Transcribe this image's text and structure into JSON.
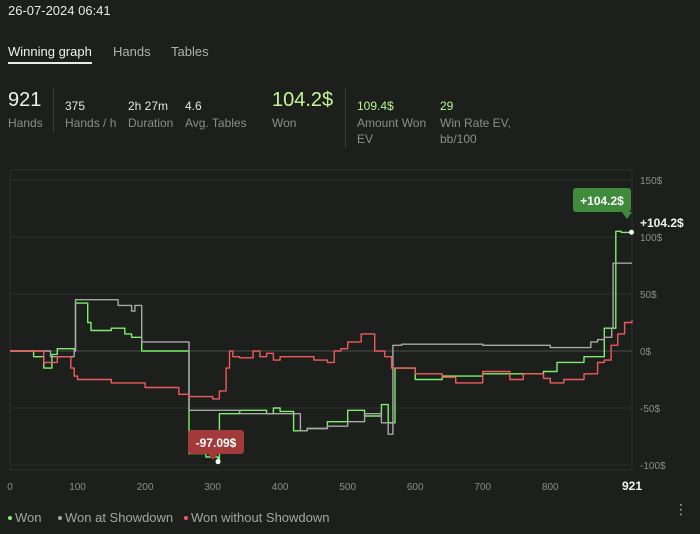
{
  "header": {
    "datetime": "26-07-2024 06:41"
  },
  "tabs": [
    {
      "label": "Winning graph",
      "active": true
    },
    {
      "label": "Hands",
      "active": false
    },
    {
      "label": "Tables",
      "active": false
    }
  ],
  "stats": {
    "hands": {
      "value": "921",
      "label": "Hands"
    },
    "hands_per_hour": {
      "value": "375",
      "label": "Hands / h"
    },
    "duration": {
      "value": "2h 27m",
      "label": "Duration"
    },
    "avg_tables": {
      "value": "4.6",
      "label": "Avg. Tables"
    },
    "won": {
      "value": "104.2$",
      "label": "Won"
    },
    "amount_won_ev": {
      "value": "109.4$",
      "label_line1": "Amount Won",
      "label_line2": "EV"
    },
    "win_rate_ev": {
      "value": "29",
      "label_line1": "Win Rate EV,",
      "label_line2": "bb/100"
    }
  },
  "legend": {
    "won": "Won",
    "won_at_showdown": "Won at Showdown",
    "won_without_showdown": "Won without Showdown"
  },
  "colors": {
    "won": "#7cf06a",
    "won_at_showdown": "#a8a8a8",
    "won_without_showdown": "#ef5b5b",
    "max_badge": "#3f8a3b",
    "min_badge": "#a33a3a"
  },
  "chart_data": {
    "type": "line",
    "x_ticks": [
      "0",
      "100",
      "200",
      "300",
      "400",
      "500",
      "600",
      "700",
      "800",
      "921"
    ],
    "y_ticks": [
      "150$",
      "100$",
      "50$",
      "0$",
      "-50$",
      "-100$"
    ],
    "xlim": [
      0,
      921
    ],
    "ylim": [
      -100,
      150
    ],
    "max_label": "+104.2$",
    "min_label": "-97.09$",
    "end_label": "+104.2$",
    "max_point": {
      "x": 921,
      "y": 104.2
    },
    "min_point": {
      "x": 308,
      "y": -97.09
    },
    "series": [
      {
        "name": "Won",
        "points": [
          [
            0,
            0
          ],
          [
            25,
            0
          ],
          [
            35,
            -5
          ],
          [
            50,
            -15
          ],
          [
            62,
            -3
          ],
          [
            70,
            2
          ],
          [
            95,
            0
          ],
          [
            97,
            42
          ],
          [
            115,
            25
          ],
          [
            120,
            18
          ],
          [
            150,
            20
          ],
          [
            170,
            15
          ],
          [
            180,
            12
          ],
          [
            195,
            0
          ],
          [
            265,
            -90
          ],
          [
            290,
            -93
          ],
          [
            308,
            -97.09
          ],
          [
            310,
            -55
          ],
          [
            340,
            -52
          ],
          [
            380,
            -55
          ],
          [
            390,
            -50
          ],
          [
            400,
            -53
          ],
          [
            420,
            -70
          ],
          [
            440,
            -68
          ],
          [
            470,
            -62
          ],
          [
            500,
            -52
          ],
          [
            525,
            -57
          ],
          [
            550,
            -47
          ],
          [
            560,
            -63
          ],
          [
            570,
            -15
          ],
          [
            600,
            -25
          ],
          [
            625,
            -25
          ],
          [
            640,
            -22
          ],
          [
            700,
            -20
          ],
          [
            760,
            -20
          ],
          [
            790,
            -18
          ],
          [
            810,
            -10
          ],
          [
            850,
            -5
          ],
          [
            880,
            20
          ],
          [
            893,
            20
          ],
          [
            897,
            105
          ],
          [
            905,
            104
          ],
          [
            921,
            104.2
          ]
        ]
      },
      {
        "name": "Won at Showdown",
        "points": [
          [
            0,
            0
          ],
          [
            40,
            0
          ],
          [
            60,
            -5
          ],
          [
            95,
            0
          ],
          [
            97,
            45
          ],
          [
            150,
            45
          ],
          [
            160,
            40
          ],
          [
            180,
            35
          ],
          [
            185,
            40
          ],
          [
            195,
            8
          ],
          [
            265,
            -52
          ],
          [
            340,
            -55
          ],
          [
            380,
            -55
          ],
          [
            400,
            -55
          ],
          [
            430,
            -70
          ],
          [
            440,
            -68
          ],
          [
            470,
            -66
          ],
          [
            500,
            -62
          ],
          [
            525,
            -55
          ],
          [
            550,
            -63
          ],
          [
            560,
            -73
          ],
          [
            567,
            5
          ],
          [
            580,
            6
          ],
          [
            700,
            5
          ],
          [
            800,
            3
          ],
          [
            860,
            8
          ],
          [
            870,
            10
          ],
          [
            880,
            12
          ],
          [
            891,
            20
          ],
          [
            893,
            77
          ],
          [
            921,
            77
          ]
        ]
      },
      {
        "name": "Won without Showdown",
        "points": [
          [
            0,
            0
          ],
          [
            30,
            0
          ],
          [
            50,
            -10
          ],
          [
            70,
            -5
          ],
          [
            90,
            -15
          ],
          [
            95,
            -22
          ],
          [
            100,
            -25
          ],
          [
            150,
            -28
          ],
          [
            200,
            -32
          ],
          [
            250,
            -38
          ],
          [
            265,
            -40
          ],
          [
            290,
            -40
          ],
          [
            300,
            -42
          ],
          [
            310,
            -35
          ],
          [
            320,
            -15
          ],
          [
            325,
            0
          ],
          [
            330,
            -5
          ],
          [
            340,
            -6
          ],
          [
            360,
            0
          ],
          [
            370,
            -5
          ],
          [
            380,
            -2
          ],
          [
            390,
            -8
          ],
          [
            400,
            -5
          ],
          [
            420,
            -5
          ],
          [
            450,
            -8
          ],
          [
            470,
            -10
          ],
          [
            480,
            0
          ],
          [
            490,
            2
          ],
          [
            500,
            8
          ],
          [
            510,
            8
          ],
          [
            520,
            15
          ],
          [
            530,
            15
          ],
          [
            540,
            0
          ],
          [
            555,
            -5
          ],
          [
            565,
            -15
          ],
          [
            580,
            -15
          ],
          [
            600,
            -20
          ],
          [
            640,
            -23
          ],
          [
            660,
            -28
          ],
          [
            700,
            -18
          ],
          [
            740,
            -25
          ],
          [
            760,
            -20
          ],
          [
            790,
            -24
          ],
          [
            800,
            -28
          ],
          [
            820,
            -25
          ],
          [
            850,
            -20
          ],
          [
            870,
            -10
          ],
          [
            880,
            -8
          ],
          [
            890,
            5
          ],
          [
            900,
            15
          ],
          [
            910,
            25
          ],
          [
            921,
            27
          ]
        ]
      }
    ]
  }
}
